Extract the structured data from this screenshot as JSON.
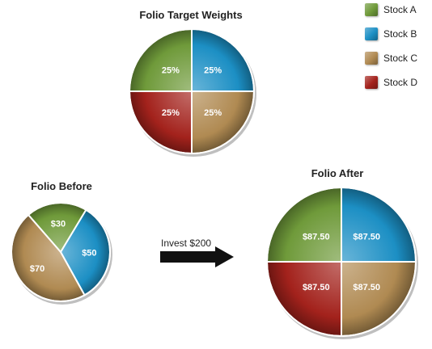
{
  "colors": {
    "stock_a": "#6f9a3a",
    "stock_b": "#1c8fc4",
    "stock_c": "#b08a52",
    "stock_d": "#a3221c"
  },
  "legend": [
    {
      "label": "Stock A",
      "color": "#6f9a3a"
    },
    {
      "label": "Stock B",
      "color": "#1c8fc4"
    },
    {
      "label": "Stock C",
      "color": "#b08a52"
    },
    {
      "label": "Stock D",
      "color": "#a3221c"
    }
  ],
  "arrow_label": "Invest $200",
  "chart_data": [
    {
      "type": "pie",
      "title": "Folio Target Weights",
      "labels": [
        "Stock A",
        "Stock B",
        "Stock C",
        "Stock D"
      ],
      "values": [
        25,
        25,
        25,
        25
      ],
      "data_labels": [
        "25%",
        "25%",
        "25%",
        "25%"
      ]
    },
    {
      "type": "pie",
      "title": "Folio Before",
      "labels": [
        "Stock A",
        "Stock B",
        "Stock C"
      ],
      "values": [
        30,
        50,
        70
      ],
      "data_labels": [
        "$30",
        "$50",
        "$70"
      ]
    },
    {
      "type": "pie",
      "title": "Folio After",
      "labels": [
        "Stock A",
        "Stock B",
        "Stock C",
        "Stock D"
      ],
      "values": [
        87.5,
        87.5,
        87.5,
        87.5
      ],
      "data_labels": [
        "$87.50",
        "$87.50",
        "$87.50",
        "$87.50"
      ]
    }
  ]
}
